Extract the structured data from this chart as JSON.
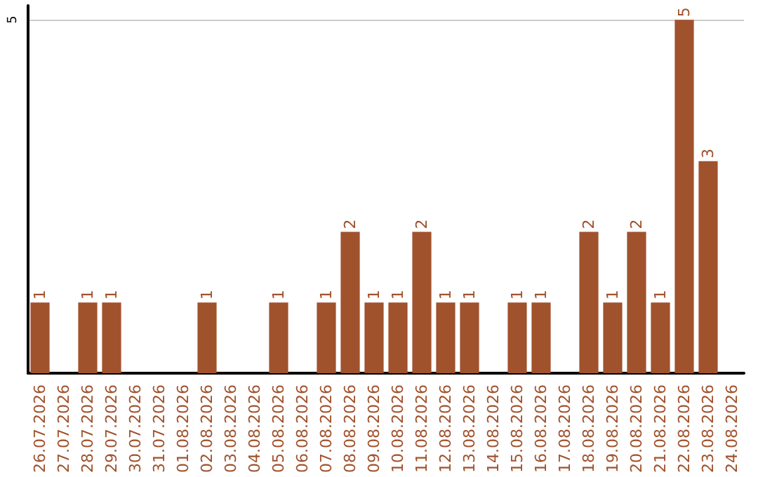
{
  "chart_data": {
    "type": "bar",
    "categories": [
      "26.07.2026",
      "27.07.2026",
      "28.07.2026",
      "29.07.2026",
      "30.07.2026",
      "31.07.2026",
      "01.08.2026",
      "02.08.2026",
      "03.08.2026",
      "04.08.2026",
      "05.08.2026",
      "06.08.2026",
      "07.08.2026",
      "08.08.2026",
      "09.08.2026",
      "10.08.2026",
      "11.08.2026",
      "12.08.2026",
      "13.08.2026",
      "14.08.2026",
      "15.08.2026",
      "16.08.2026",
      "17.08.2026",
      "18.08.2026",
      "19.08.2026",
      "20.08.2026",
      "21.08.2026",
      "22.08.2026",
      "23.08.2026",
      "24.08.2026"
    ],
    "values": [
      1,
      null,
      1,
      1,
      null,
      null,
      null,
      1,
      null,
      null,
      1,
      null,
      1,
      2,
      1,
      1,
      2,
      1,
      1,
      null,
      1,
      1,
      null,
      2,
      1,
      2,
      1,
      5,
      3,
      null
    ],
    "color": "#a0522d",
    "ylim": [
      0,
      5.2
    ],
    "yticks": [
      5
    ],
    "grid": "y",
    "data_labels": true
  }
}
